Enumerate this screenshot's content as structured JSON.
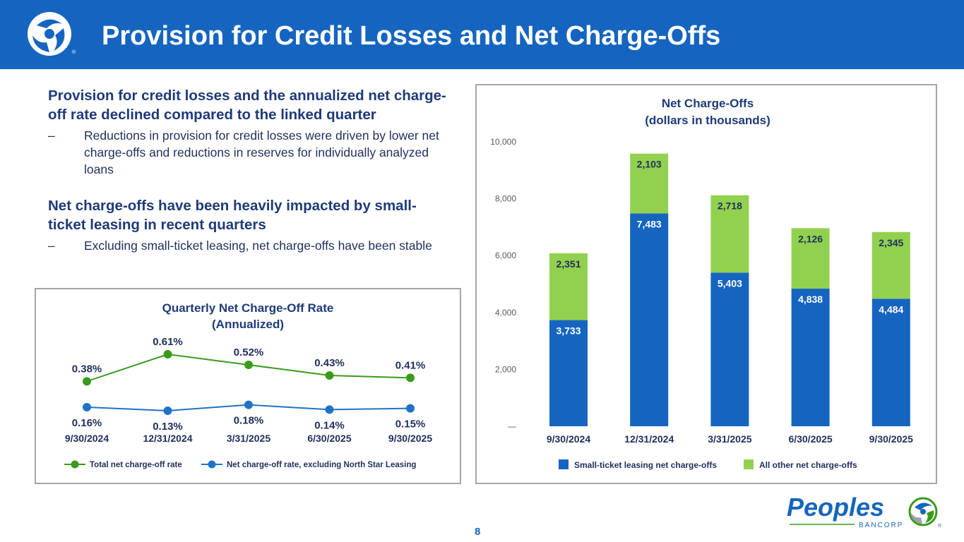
{
  "header": {
    "title": "Provision for Credit Losses and Net Charge-Offs"
  },
  "text": {
    "heading1": "Provision for credit losses and the annualized net charge-off rate declined compared to the linked quarter",
    "bullet1": "Reductions in provision for credit losses were driven by lower net charge-offs and reductions in reserves for individually analyzed loans",
    "heading2": "Net charge-offs have been heavily impacted by small-ticket leasing in recent quarters",
    "bullet2": "Excluding small-ticket leasing, net charge-offs have been stable",
    "dash": "–"
  },
  "page_number": "8",
  "brand": {
    "name": "Peoples",
    "sub": "BANCORP",
    "reg": "®"
  },
  "colors": {
    "header_bg": "#1565c0",
    "blue_series": "#1565c0",
    "green_series": "#92d14f",
    "line_green": "#3a9a1c",
    "line_blue": "#1e73c8"
  },
  "chart_data": [
    {
      "type": "line",
      "title": "Quarterly Net Charge-Off Rate",
      "subtitle": "(Annualized)",
      "categories": [
        "9/30/2024",
        "12/31/2024",
        "3/31/2025",
        "6/30/2025",
        "9/30/2025"
      ],
      "series": [
        {
          "name": "Total net charge-off rate",
          "values": [
            0.38,
            0.61,
            0.52,
            0.43,
            0.41
          ],
          "labels": [
            "0.38%",
            "0.61%",
            "0.52%",
            "0.43%",
            "0.41%"
          ]
        },
        {
          "name": "Net charge-off rate, excluding North Star Leasing",
          "values": [
            0.16,
            0.13,
            0.18,
            0.14,
            0.15
          ],
          "labels": [
            "0.16%",
            "0.13%",
            "0.18%",
            "0.14%",
            "0.15%"
          ]
        }
      ],
      "legend": "bottom",
      "xlabel": "",
      "ylabel": ""
    },
    {
      "type": "bar",
      "stacked": true,
      "title": "Net Charge-Offs",
      "subtitle": "(dollars in thousands)",
      "categories": [
        "9/30/2024",
        "12/31/2024",
        "3/31/2025",
        "6/30/2025",
        "9/30/2025"
      ],
      "series": [
        {
          "name": "Small-ticket leasing net charge-offs",
          "values": [
            3733,
            7483,
            5403,
            4838,
            4484
          ],
          "labels": [
            "3,733",
            "7,483",
            "5,403",
            "4,838",
            "4,484"
          ]
        },
        {
          "name": "All other net charge-offs",
          "values": [
            2351,
            2103,
            2718,
            2126,
            2345
          ],
          "labels": [
            "2,351",
            "2,103",
            "2,718",
            "2,126",
            "2,345"
          ]
        }
      ],
      "ylim": [
        0,
        10000
      ],
      "yticks": [
        "—",
        "2,000",
        "4,000",
        "6,000",
        "8,000",
        "10,000"
      ],
      "legend": "bottom",
      "xlabel": "",
      "ylabel": ""
    }
  ]
}
